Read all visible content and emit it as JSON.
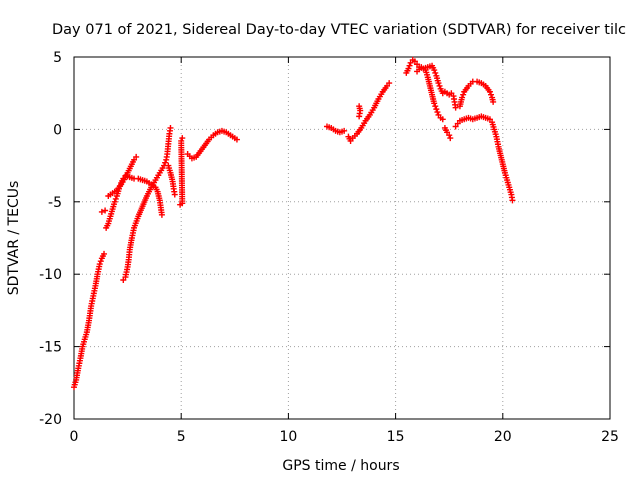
{
  "chart_data": {
    "type": "scatter",
    "title": "Day 071 of 2021, Sidereal Day-to-day VTEC variation (SDTVAR) for receiver tilc",
    "xlabel": "GPS time / hours",
    "ylabel": "SDTVAR / TECUs",
    "xlim": [
      0,
      25
    ],
    "ylim": [
      -20,
      5
    ],
    "xticks": [
      0,
      5,
      10,
      15,
      20,
      25
    ],
    "yticks": [
      -20,
      -15,
      -10,
      -5,
      0,
      5
    ],
    "xtick_labels": [
      "0",
      "5",
      "10",
      "15",
      "20",
      "25"
    ],
    "ytick_labels": [
      "-20",
      "-15",
      "-10",
      "-5",
      "0",
      "5"
    ],
    "grid": true,
    "marker": "plus",
    "series_color": "#ff0000",
    "tracks": [
      [
        [
          0.0,
          -17.8
        ],
        [
          0.1,
          -17.3
        ],
        [
          0.2,
          -16.5
        ],
        [
          0.3,
          -15.8
        ],
        [
          0.4,
          -15.0
        ],
        [
          0.5,
          -14.5
        ],
        [
          0.6,
          -14.0
        ],
        [
          0.7,
          -13.2
        ],
        [
          0.8,
          -12.2
        ],
        [
          0.9,
          -11.5
        ],
        [
          1.0,
          -10.8
        ],
        [
          1.1,
          -10.0
        ],
        [
          1.2,
          -9.3
        ],
        [
          1.3,
          -8.9
        ],
        [
          1.4,
          -8.6
        ]
      ],
      [
        [
          1.3,
          -5.7
        ],
        [
          1.45,
          -5.6
        ]
      ],
      [
        [
          1.5,
          -6.8
        ],
        [
          1.6,
          -6.5
        ],
        [
          1.7,
          -6.0
        ],
        [
          1.8,
          -5.5
        ],
        [
          1.9,
          -5.0
        ],
        [
          2.0,
          -4.6
        ],
        [
          2.1,
          -4.1
        ],
        [
          2.2,
          -3.7
        ],
        [
          2.3,
          -3.4
        ],
        [
          2.4,
          -3.2
        ],
        [
          2.6,
          -3.3
        ],
        [
          2.8,
          -3.4
        ],
        [
          3.0,
          -3.4
        ],
        [
          3.2,
          -3.5
        ],
        [
          3.4,
          -3.6
        ],
        [
          3.6,
          -3.8
        ],
        [
          3.8,
          -4.0
        ],
        [
          3.9,
          -4.3
        ],
        [
          4.0,
          -4.9
        ],
        [
          4.05,
          -5.4
        ],
        [
          4.1,
          -5.9
        ]
      ],
      [
        [
          1.6,
          -4.6
        ],
        [
          1.8,
          -4.4
        ],
        [
          2.0,
          -4.2
        ],
        [
          2.2,
          -3.8
        ],
        [
          2.4,
          -3.3
        ],
        [
          2.5,
          -3.0
        ],
        [
          2.6,
          -2.7
        ],
        [
          2.7,
          -2.4
        ],
        [
          2.8,
          -2.1
        ],
        [
          2.9,
          -1.9
        ]
      ],
      [
        [
          2.3,
          -10.4
        ],
        [
          2.4,
          -10.2
        ],
        [
          2.5,
          -9.5
        ],
        [
          2.55,
          -9.0
        ],
        [
          2.6,
          -8.3
        ],
        [
          2.7,
          -7.5
        ],
        [
          2.8,
          -6.8
        ],
        [
          3.0,
          -6.0
        ],
        [
          3.2,
          -5.3
        ],
        [
          3.4,
          -4.6
        ],
        [
          3.6,
          -4.0
        ],
        [
          3.8,
          -3.5
        ],
        [
          4.0,
          -3.0
        ],
        [
          4.2,
          -2.5
        ],
        [
          4.3,
          -2.1
        ],
        [
          4.35,
          -1.7
        ],
        [
          4.4,
          -1.0
        ],
        [
          4.45,
          -0.3
        ],
        [
          4.5,
          0.1
        ]
      ],
      [
        [
          4.4,
          -2.5
        ],
        [
          4.5,
          -3.0
        ],
        [
          4.6,
          -3.6
        ],
        [
          4.65,
          -4.1
        ],
        [
          4.7,
          -4.5
        ]
      ],
      [
        [
          4.95,
          -5.2
        ],
        [
          5.05,
          -5.1
        ],
        [
          5.0,
          -0.8
        ],
        [
          5.05,
          -0.6
        ]
      ],
      [
        [
          5.3,
          -1.7
        ],
        [
          5.5,
          -2.0
        ],
        [
          5.7,
          -1.9
        ],
        [
          5.9,
          -1.5
        ],
        [
          6.1,
          -1.1
        ],
        [
          6.3,
          -0.7
        ],
        [
          6.5,
          -0.4
        ],
        [
          6.7,
          -0.2
        ],
        [
          6.9,
          -0.1
        ],
        [
          7.1,
          -0.2
        ],
        [
          7.3,
          -0.4
        ],
        [
          7.5,
          -0.6
        ],
        [
          7.6,
          -0.7
        ]
      ],
      [
        [
          11.8,
          0.2
        ],
        [
          12.0,
          0.1
        ],
        [
          12.2,
          -0.1
        ],
        [
          12.4,
          -0.2
        ],
        [
          12.6,
          -0.1
        ]
      ],
      [
        [
          12.8,
          -0.5
        ],
        [
          12.9,
          -0.8
        ],
        [
          13.0,
          -0.6
        ],
        [
          13.2,
          -0.3
        ],
        [
          13.4,
          0.1
        ],
        [
          13.6,
          0.6
        ],
        [
          13.8,
          1.0
        ],
        [
          14.0,
          1.5
        ],
        [
          14.2,
          2.1
        ],
        [
          14.4,
          2.6
        ],
        [
          14.6,
          3.0
        ],
        [
          14.7,
          3.2
        ]
      ],
      [
        [
          13.3,
          1.6
        ],
        [
          13.35,
          1.3
        ],
        [
          13.3,
          0.9
        ]
      ],
      [
        [
          15.5,
          3.9
        ],
        [
          15.6,
          4.2
        ],
        [
          15.7,
          4.6
        ],
        [
          15.8,
          4.8
        ],
        [
          15.9,
          4.7
        ],
        [
          16.0,
          4.5
        ],
        [
          16.1,
          4.3
        ],
        [
          16.3,
          4.2
        ],
        [
          16.5,
          4.3
        ],
        [
          16.7,
          4.4
        ],
        [
          16.8,
          4.1
        ],
        [
          16.9,
          3.7
        ],
        [
          17.0,
          3.2
        ],
        [
          17.1,
          2.8
        ],
        [
          17.2,
          2.5
        ],
        [
          17.3,
          2.6
        ],
        [
          17.5,
          2.4
        ],
        [
          17.6,
          2.5
        ],
        [
          17.7,
          2.3
        ],
        [
          17.75,
          1.9
        ],
        [
          17.8,
          1.5
        ]
      ],
      [
        [
          16.0,
          4.0
        ],
        [
          16.2,
          4.3
        ],
        [
          16.4,
          4.1
        ],
        [
          16.5,
          3.6
        ],
        [
          16.6,
          3.0
        ],
        [
          16.7,
          2.4
        ],
        [
          16.8,
          1.8
        ],
        [
          16.9,
          1.4
        ],
        [
          17.0,
          1.0
        ],
        [
          17.1,
          0.8
        ],
        [
          17.2,
          0.7
        ]
      ],
      [
        [
          17.3,
          0.1
        ],
        [
          17.4,
          -0.2
        ],
        [
          17.5,
          -0.4
        ],
        [
          17.55,
          -0.6
        ]
      ],
      [
        [
          17.8,
          0.2
        ],
        [
          17.9,
          0.4
        ],
        [
          18.0,
          0.6
        ],
        [
          18.2,
          0.7
        ],
        [
          18.4,
          0.8
        ],
        [
          18.6,
          0.7
        ],
        [
          18.8,
          0.8
        ],
        [
          19.0,
          0.9
        ],
        [
          19.2,
          0.8
        ],
        [
          19.4,
          0.7
        ],
        [
          19.5,
          0.5
        ],
        [
          19.6,
          0.0
        ],
        [
          19.7,
          -0.5
        ],
        [
          19.8,
          -1.2
        ],
        [
          19.9,
          -1.8
        ],
        [
          20.0,
          -2.4
        ],
        [
          20.1,
          -3.0
        ],
        [
          20.2,
          -3.5
        ],
        [
          20.3,
          -4.0
        ],
        [
          20.4,
          -4.5
        ],
        [
          20.45,
          -4.9
        ]
      ],
      [
        [
          18.0,
          1.6
        ],
        [
          18.1,
          2.2
        ],
        [
          18.2,
          2.6
        ],
        [
          18.4,
          3.0
        ],
        [
          18.6,
          3.3
        ],
        [
          18.8,
          3.3
        ],
        [
          19.0,
          3.2
        ],
        [
          19.2,
          3.0
        ],
        [
          19.4,
          2.6
        ],
        [
          19.5,
          2.2
        ],
        [
          19.55,
          1.9
        ]
      ]
    ]
  }
}
